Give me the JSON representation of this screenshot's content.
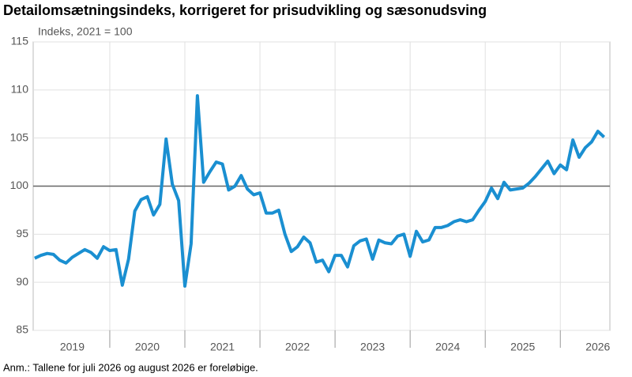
{
  "chart_data": {
    "type": "line",
    "title": "Detailomsætningsindeks, korrigeret for prisudvikling og sæsonudsving",
    "subtitle": "Indeks, 2021 = 100",
    "note": "Anm.: Tallene for juli 2026 og august 2026 er foreløbige.",
    "x": [
      2019,
      2019.083,
      2019.167,
      2019.25,
      2019.333,
      2019.417,
      2019.5,
      2019.583,
      2019.667,
      2019.75,
      2019.833,
      2019.917,
      2020,
      2020.083,
      2020.167,
      2020.25,
      2020.333,
      2020.417,
      2020.5,
      2020.583,
      2020.667,
      2020.75,
      2020.833,
      2020.917,
      2021,
      2021.083,
      2021.167,
      2021.25,
      2021.333,
      2021.417,
      2021.5,
      2021.583,
      2021.667,
      2021.75,
      2021.833,
      2021.917,
      2022,
      2022.083,
      2022.167,
      2022.25,
      2022.333,
      2022.417,
      2022.5,
      2022.583,
      2022.667,
      2022.75,
      2022.833,
      2022.917,
      2023,
      2023.083,
      2023.167,
      2023.25,
      2023.333,
      2023.417,
      2023.5,
      2023.583,
      2023.667,
      2023.75,
      2023.833,
      2023.917,
      2024,
      2024.083,
      2024.167,
      2024.25,
      2024.333,
      2024.417,
      2024.5,
      2024.583,
      2024.667,
      2024.75,
      2024.833,
      2024.917,
      2025,
      2025.083,
      2025.167,
      2025.25,
      2025.333,
      2025.417,
      2025.5,
      2025.583,
      2025.667,
      2025.75,
      2025.833,
      2025.917,
      2026,
      2026.083,
      2026.167,
      2026.25,
      2026.333,
      2026.417,
      2026.5,
      2026.583
    ],
    "series": [
      {
        "color": "#1a8fd1",
        "values": [
          92.5,
          92.8,
          93.0,
          92.9,
          92.3,
          92.0,
          92.6,
          93.0,
          93.4,
          93.1,
          92.5,
          93.7,
          93.3,
          93.4,
          89.7,
          92.4,
          97.4,
          98.6,
          98.9,
          97.0,
          98.1,
          104.9,
          100.2,
          98.5,
          89.6,
          94.0,
          109.4,
          100.4,
          101.5,
          102.5,
          102.3,
          99.6,
          100.0,
          101.1,
          99.7,
          99.1,
          99.3,
          97.2,
          97.2,
          97.5,
          95.0,
          93.2,
          93.7,
          94.7,
          94.1,
          92.1,
          92.3,
          91.1,
          92.8,
          92.8,
          91.6,
          93.8,
          94.3,
          94.5,
          92.4,
          94.4,
          94.1,
          94.0,
          94.8,
          95.0,
          92.7,
          95.3,
          94.2,
          94.4,
          95.7,
          95.7,
          95.9,
          96.3,
          96.5,
          96.3,
          96.5,
          97.5,
          98.4,
          99.8,
          98.7,
          100.4,
          99.6,
          99.7,
          99.8,
          100.3,
          101.0,
          101.8,
          102.6,
          101.3,
          102.2,
          101.7,
          104.8,
          103.0,
          104.0,
          104.6,
          105.7,
          105.1
        ]
      }
    ],
    "xlim": [
      2018.98,
      2026.66
    ],
    "xticks": [
      2020,
      2021,
      2022,
      2023,
      2024,
      2025,
      2026
    ],
    "year_labels": [
      2019,
      2020,
      2021,
      2022,
      2023,
      2024,
      2025,
      2026
    ],
    "ylim": [
      85,
      115
    ],
    "yticks": [
      85,
      90,
      95,
      100,
      105,
      110,
      115
    ],
    "reference_line": 100,
    "grid": true
  }
}
